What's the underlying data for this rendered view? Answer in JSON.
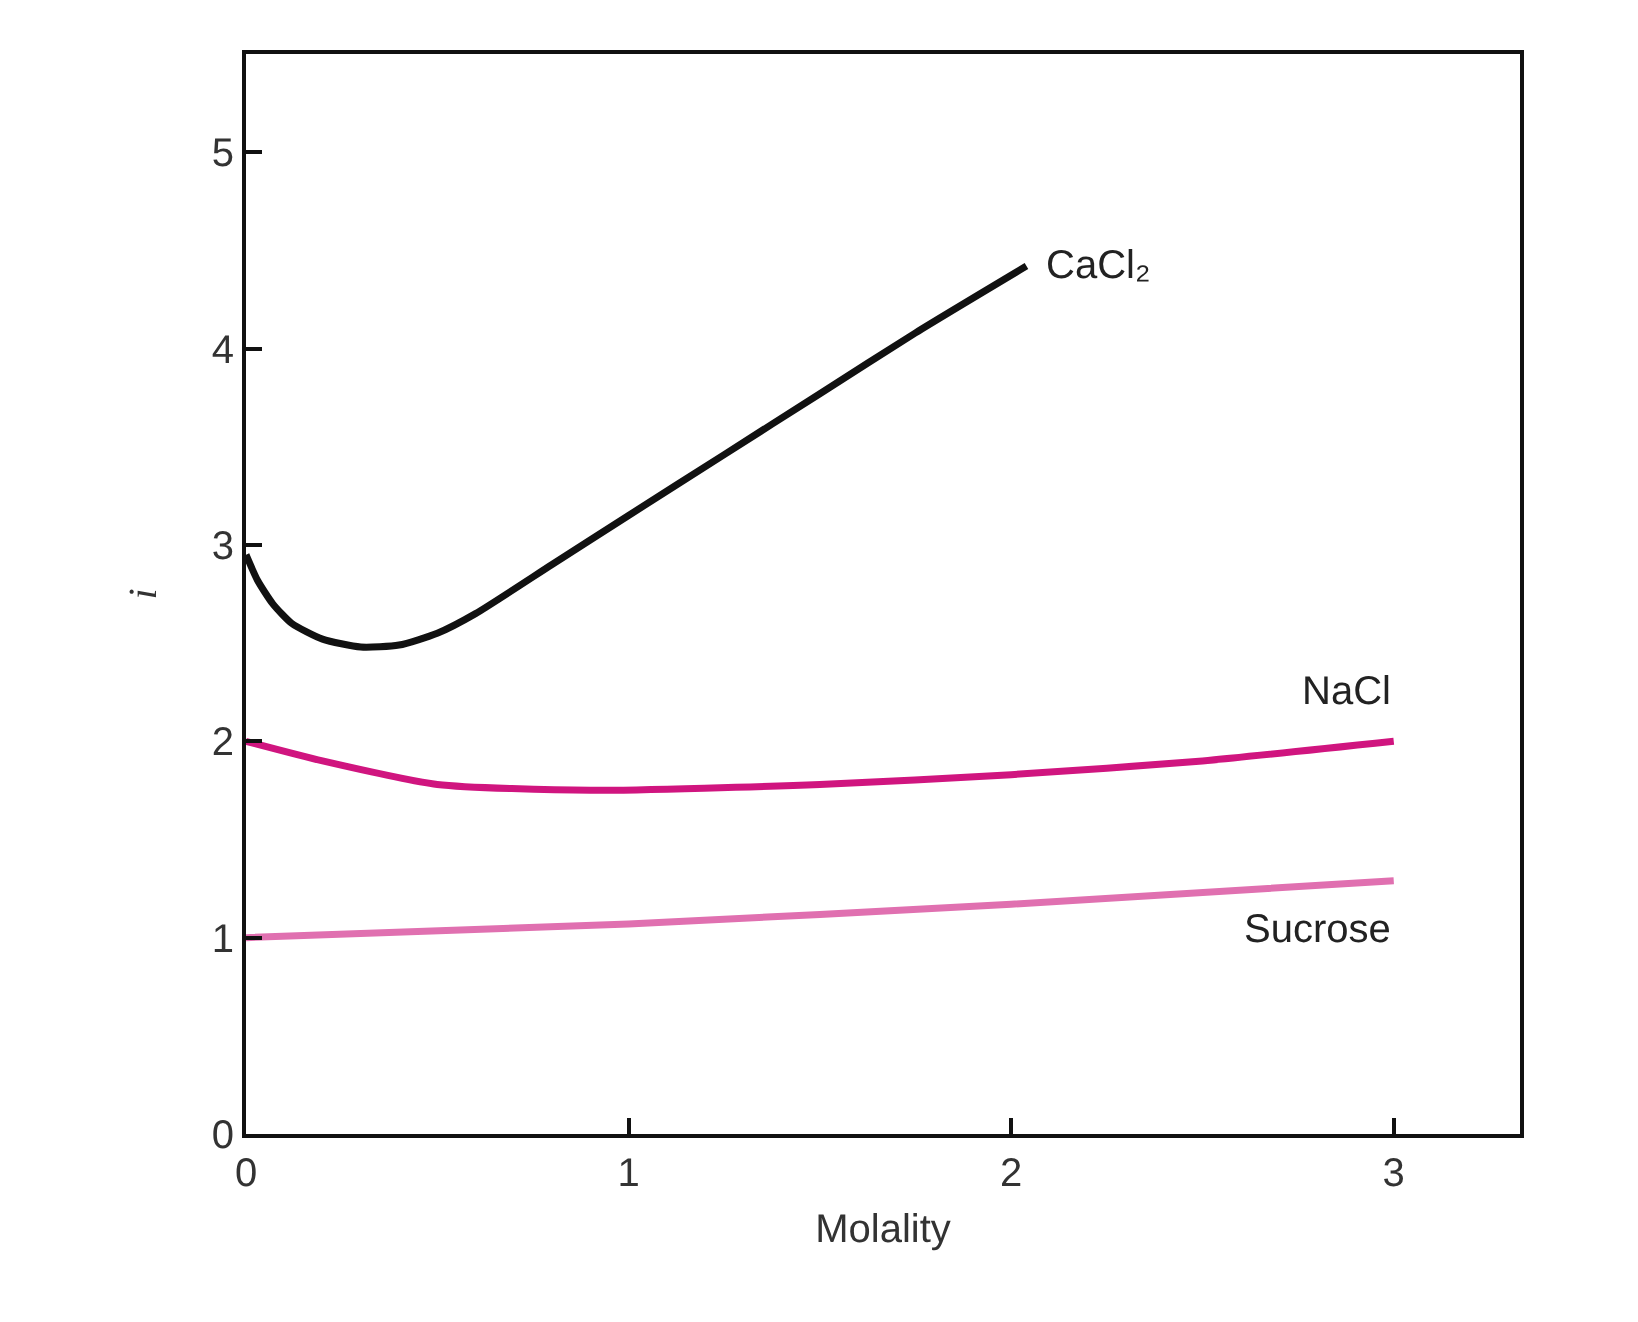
{
  "chart_data": {
    "type": "line",
    "xlabel": "Molality",
    "ylabel": "i",
    "xlim": [
      0,
      3.33
    ],
    "ylim": [
      0,
      5.5
    ],
    "xticks": [
      0,
      1,
      2,
      3
    ],
    "yticks": [
      0,
      1,
      2,
      3,
      4,
      5
    ],
    "grid": false,
    "legend": false,
    "marker": "none",
    "line_style": "solid",
    "series": [
      {
        "name": "CaCl₂",
        "color": "#111111",
        "x": [
          0,
          0.03,
          0.07,
          0.12,
          0.2,
          0.3,
          0.4,
          0.5,
          0.6,
          0.8,
          1.0,
          1.25,
          1.5,
          1.75,
          2.04
        ],
        "values": [
          2.95,
          2.82,
          2.7,
          2.6,
          2.52,
          2.48,
          2.49,
          2.55,
          2.65,
          2.9,
          3.15,
          3.46,
          3.77,
          4.08,
          4.42
        ]
      },
      {
        "name": "NaCl",
        "color": "#d0157f",
        "x": [
          0,
          0.2,
          0.5,
          0.9,
          1.5,
          2.0,
          2.5,
          3.0
        ],
        "values": [
          2.0,
          1.9,
          1.78,
          1.75,
          1.78,
          1.83,
          1.9,
          2.0
        ]
      },
      {
        "name": "Sucrose",
        "color": "#e070b0",
        "x": [
          0,
          1,
          2,
          3
        ],
        "values": [
          1.0,
          1.07,
          1.17,
          1.29
        ]
      }
    ]
  }
}
